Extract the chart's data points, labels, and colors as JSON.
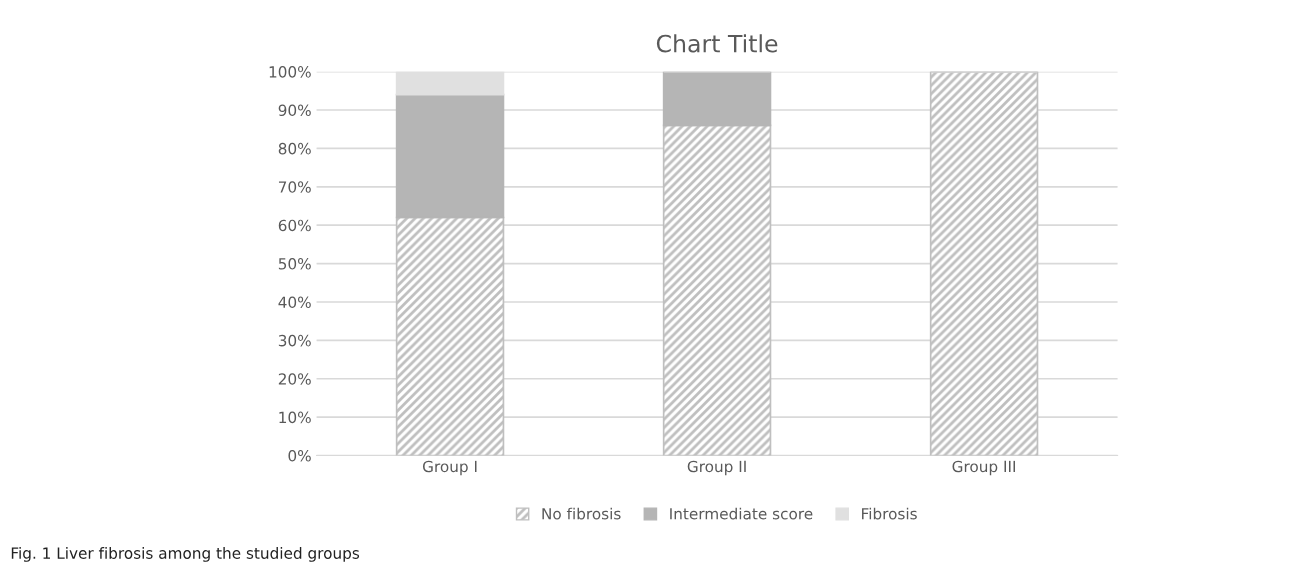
{
  "chart_data": {
    "type": "bar",
    "title": "Chart Title",
    "stacked": true,
    "categories": [
      "Group I",
      "Group II",
      "Group III"
    ],
    "series": [
      {
        "name": "No fibrosis",
        "color": "#bfbfbf",
        "values": [
          62,
          86,
          100
        ]
      },
      {
        "name": "Intermediate score",
        "color": "#b5b5b5",
        "values": [
          32,
          14,
          0
        ]
      },
      {
        "name": "Fibrosis",
        "color": "#e0e0e0",
        "values": [
          6,
          0,
          0
        ]
      }
    ],
    "ylim": [
      0,
      100
    ],
    "yticks": [
      {
        "value": 0,
        "label": "0%"
      },
      {
        "value": 10,
        "label": "10%"
      },
      {
        "value": 20,
        "label": "20%"
      },
      {
        "value": 30,
        "label": "30%"
      },
      {
        "value": 40,
        "label": "40%"
      },
      {
        "value": 50,
        "label": "50%"
      },
      {
        "value": 60,
        "label": "60%"
      },
      {
        "value": 70,
        "label": "70%"
      },
      {
        "value": 80,
        "label": "80%"
      },
      {
        "value": 90,
        "label": "90%"
      },
      {
        "value": 100,
        "label": "100%"
      }
    ],
    "grid": "y",
    "legend": "bottom",
    "annotations": [
      "Fig. 1 Liver fibrosis among the studied groups"
    ]
  }
}
